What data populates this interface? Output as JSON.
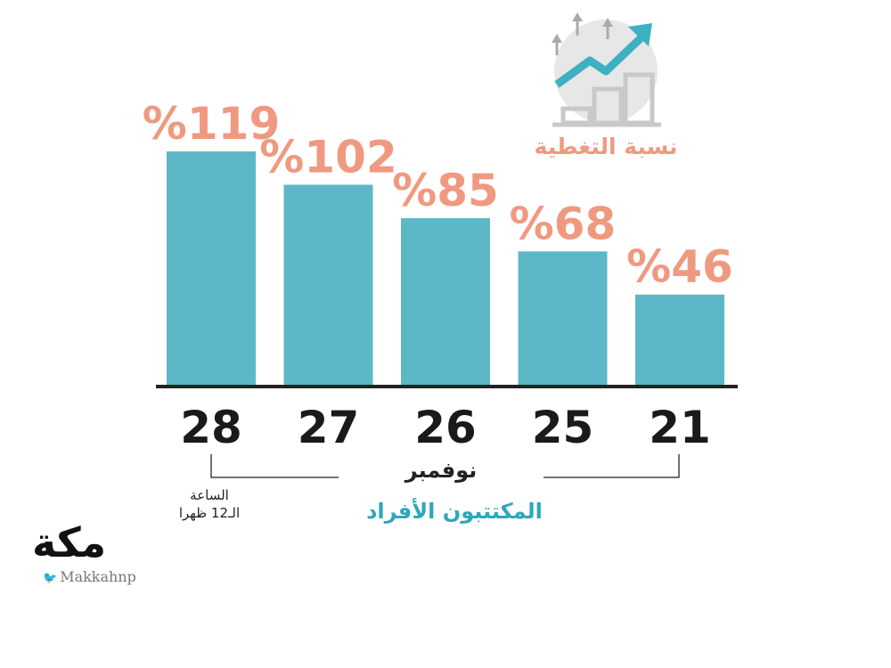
{
  "chart_data": {
    "type": "bar",
    "categories": [
      "28",
      "27",
      "26",
      "25",
      "21"
    ],
    "values": [
      119,
      102,
      85,
      68,
      46
    ],
    "value_labels": [
      "%119",
      "%102",
      "%85",
      "%68",
      "%46"
    ],
    "title": "",
    "xlabel": "نوفمبر",
    "ylabel": "",
    "ylim": [
      0,
      125
    ],
    "bar_color": "#5cb8c6",
    "label_color": "#ef9a80",
    "grid": false
  },
  "legend_title": "نسبة التغطية",
  "subtitle": "المكتتبون الأفراد",
  "time_note": {
    "line1": "الساعة",
    "line2": "الـ12 ظهرا"
  },
  "logo": {
    "name": "مكة",
    "handle": "Makkahnp"
  },
  "icons": {
    "growth": "bar-growth-arrow-icon",
    "twitter": "twitter-bird-icon"
  }
}
